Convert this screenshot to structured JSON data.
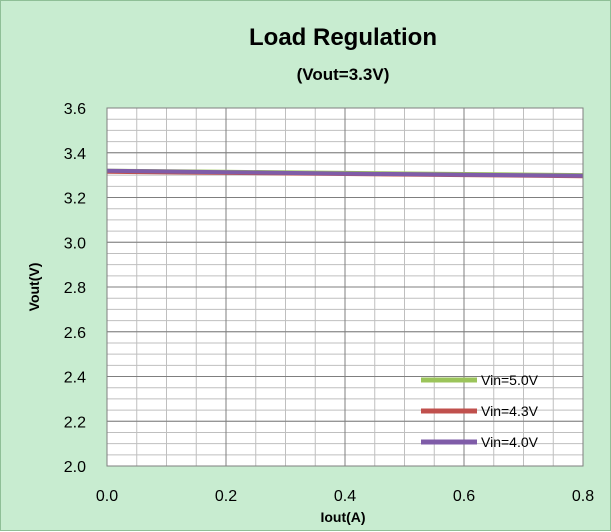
{
  "chart_data": {
    "type": "line",
    "title": "Load Regulation",
    "subtitle": "(Vout=3.3V)",
    "xlabel": "Iout(A)",
    "ylabel": "Vout(V)",
    "xlim": [
      0.0,
      0.8
    ],
    "ylim": [
      2.0,
      3.6
    ],
    "xticks": [
      "0.0",
      "0.2",
      "0.4",
      "0.6",
      "0.8"
    ],
    "yticks": [
      "2.0",
      "2.2",
      "2.4",
      "2.6",
      "2.8",
      "3.0",
      "3.2",
      "3.4",
      "3.6"
    ],
    "grid": true,
    "legend_position": "bottom-right",
    "background_color": "#c8ecd0",
    "plot_background_color": "#ffffff",
    "series": [
      {
        "name": "Vin=5.0V",
        "color": "#9bc45a",
        "x": [
          0.0,
          0.2,
          0.4,
          0.6,
          0.8
        ],
        "y": [
          3.32,
          3.315,
          3.31,
          3.305,
          3.3
        ]
      },
      {
        "name": "Vin=4.3V",
        "color": "#c0504d",
        "x": [
          0.0,
          0.2,
          0.4,
          0.6,
          0.8
        ],
        "y": [
          3.315,
          3.31,
          3.305,
          3.3,
          3.295
        ]
      },
      {
        "name": "Vin=4.0V",
        "color": "#7f5ca8",
        "x": [
          0.0,
          0.2,
          0.4,
          0.6,
          0.8
        ],
        "y": [
          3.32,
          3.313,
          3.307,
          3.302,
          3.297
        ]
      }
    ]
  }
}
